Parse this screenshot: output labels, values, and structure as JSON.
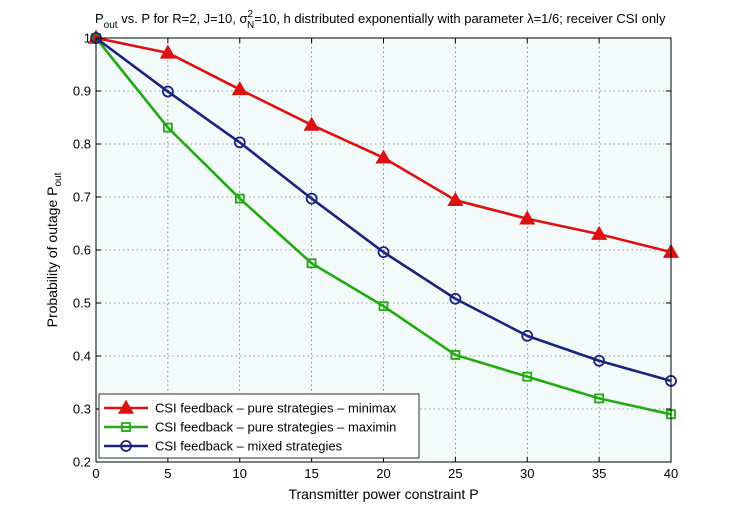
{
  "chart_data": {
    "type": "line",
    "title_parts": {
      "p_main": "P",
      "p_sub": "out",
      "t1": " vs. P for R=2, J=10, σ",
      "sigma_sup": "2",
      "sigma_sub": "N",
      "t2": "=10, h distributed exponentially with parameter λ=1/6; receiver CSI only"
    },
    "xlabel": "Transmitter power constraint P",
    "ylabel_main": "Probability of outage P",
    "ylabel_sub": "out",
    "x": [
      0,
      5,
      10,
      15,
      20,
      25,
      30,
      35,
      40
    ],
    "xlim": [
      0,
      40
    ],
    "ylim": [
      0.2,
      1
    ],
    "xticks": [
      "0",
      "5",
      "10",
      "15",
      "20",
      "25",
      "30",
      "35",
      "40"
    ],
    "yticks": [
      "0.2",
      "0.3",
      "0.4",
      "0.5",
      "0.6",
      "0.7",
      "0.8",
      "0.9",
      "1"
    ],
    "grid": true,
    "legend_position": "bottom-left",
    "series": [
      {
        "name": "CSI feedback – pure strategies – minimax",
        "color": "#dd1111",
        "marker": "triangle",
        "values": [
          1.0,
          0.972,
          0.903,
          0.836,
          0.774,
          0.694,
          0.659,
          0.63,
          0.596
        ]
      },
      {
        "name": "CSI feedback – pure strategies – maximin",
        "color": "#22aa11",
        "marker": "square",
        "values": [
          1.0,
          0.831,
          0.697,
          0.575,
          0.494,
          0.402,
          0.361,
          0.32,
          0.29
        ]
      },
      {
        "name": "CSI feedback – mixed strategies",
        "color": "#1a237e",
        "marker": "circle",
        "values": [
          1.0,
          0.899,
          0.803,
          0.697,
          0.596,
          0.508,
          0.438,
          0.391,
          0.353
        ]
      }
    ],
    "colors": {
      "plot_bg": "#f2fafa",
      "axis": "#000000"
    }
  }
}
